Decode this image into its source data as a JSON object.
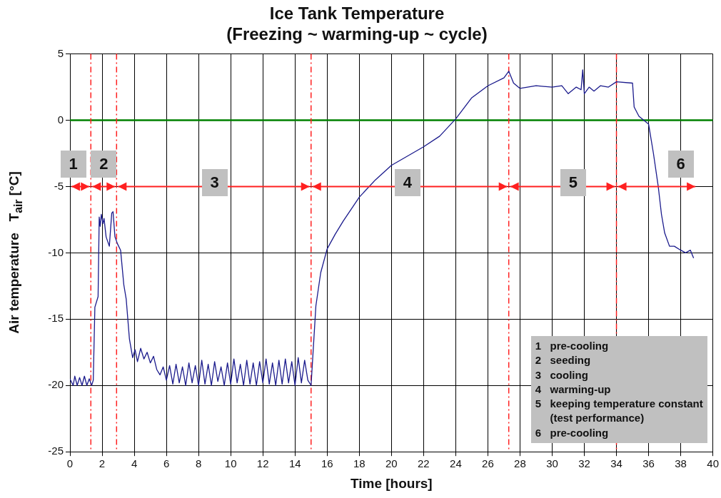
{
  "chart_data": {
    "type": "line",
    "title": [
      "Ice Tank Temperature",
      "(Freezing ~ warming-up ~ cycle)"
    ],
    "xlabel": "Time [hours]",
    "ylabel": "Air temperature   T$_{air}$ [°C]",
    "xlim": [
      0,
      40
    ],
    "xticks": [
      0,
      2,
      4,
      6,
      8,
      10,
      12,
      14,
      16,
      18,
      20,
      22,
      24,
      26,
      28,
      30,
      32,
      34,
      36,
      38,
      40
    ],
    "ylim": [
      -25,
      5
    ],
    "yticks": [
      -25,
      -20,
      -15,
      -10,
      -5,
      0,
      5
    ],
    "grid": true,
    "legend": false,
    "marker": "none",
    "line_style": "solid",
    "series": [
      {
        "color": "#1a1a8c",
        "x": [
          0,
          0.2,
          0.3,
          0.45,
          0.6,
          0.75,
          0.9,
          1.05,
          1.2,
          1.35,
          1.45,
          1.55,
          1.75,
          1.82,
          1.88,
          1.95,
          2.05,
          2.12,
          2.25,
          2.45,
          2.6,
          2.68,
          2.8,
          2.95,
          3.15,
          3.35,
          3.5,
          3.7,
          3.9,
          4.05,
          4.2,
          4.4,
          4.6,
          4.8,
          5.0,
          5.2,
          5.4,
          5.6,
          5.8,
          6.0,
          6.2,
          6.4,
          6.6,
          6.8,
          7.0,
          7.2,
          7.4,
          7.6,
          7.8,
          8.0,
          8.2,
          8.4,
          8.6,
          8.8,
          9.0,
          9.2,
          9.4,
          9.6,
          9.8,
          10.0,
          10.2,
          10.4,
          10.6,
          10.8,
          11.0,
          11.2,
          11.4,
          11.6,
          11.8,
          12.0,
          12.2,
          12.4,
          12.6,
          12.8,
          13.0,
          13.2,
          13.4,
          13.6,
          13.8,
          14.0,
          14.2,
          14.4,
          14.6,
          14.8,
          15.0,
          15.1,
          15.3,
          15.6,
          16,
          16.5,
          17,
          18,
          19,
          20,
          21,
          22,
          23,
          24,
          25,
          26,
          27,
          27.3,
          27.6,
          28,
          29,
          30,
          30.6,
          31,
          31.5,
          31.8,
          31.9,
          32,
          32.3,
          32.6,
          33,
          33.5,
          34,
          35,
          35.1,
          35.4,
          36,
          36.3,
          36.6,
          36.8,
          37,
          37.3,
          37.6,
          38,
          38.3,
          38.6,
          38.8
        ],
        "values": [
          -19.5,
          -20,
          -19.3,
          -20,
          -19.4,
          -20,
          -19.3,
          -20,
          -19.5,
          -20,
          -19.6,
          -14.1,
          -13.3,
          -7.3,
          -8.0,
          -7.1,
          -7.8,
          -7.4,
          -8.8,
          -9.5,
          -7.0,
          -6.9,
          -8.8,
          -9.3,
          -9.8,
          -12.4,
          -13.5,
          -16.5,
          -17.9,
          -17.3,
          -18.2,
          -17.2,
          -18.0,
          -17.5,
          -18.3,
          -17.8,
          -18.8,
          -19.2,
          -18.6,
          -19.6,
          -18.5,
          -19.9,
          -18.4,
          -19.8,
          -18.6,
          -20,
          -18.3,
          -19.8,
          -18.5,
          -20,
          -18.1,
          -19.9,
          -18.4,
          -20,
          -18.2,
          -19.7,
          -18.6,
          -20,
          -18.3,
          -19.9,
          -18.0,
          -19.8,
          -18.4,
          -20,
          -18.1,
          -19.9,
          -18.3,
          -20,
          -18.2,
          -19.8,
          -18.0,
          -19.9,
          -18.3,
          -20,
          -18.1,
          -19.9,
          -18.0,
          -19.8,
          -18.2,
          -20,
          -17.9,
          -19.8,
          -18.1,
          -19.6,
          -20,
          -18,
          -14,
          -11.5,
          -9.7,
          -8.6,
          -7.6,
          -5.8,
          -4.5,
          -3.4,
          -2.7,
          -2,
          -1.2,
          0.1,
          1.7,
          2.6,
          3.2,
          3.7,
          2.8,
          2.4,
          2.6,
          2.5,
          2.6,
          2.0,
          2.5,
          2.3,
          3.8,
          2.0,
          2.5,
          2.2,
          2.6,
          2.5,
          2.9,
          2.8,
          1.0,
          0.3,
          -0.3,
          -2.5,
          -5,
          -7.1,
          -8.5,
          -9.5,
          -9.5,
          -9.8,
          -10,
          -9.8,
          -10.4
        ]
      }
    ],
    "ref_lines": [
      {
        "axis": "y",
        "value": 0,
        "color": "#008000",
        "line_style": "solid"
      },
      {
        "axis": "x",
        "value": 1.3,
        "color": "#ff2020",
        "line_style": "dashed"
      },
      {
        "axis": "x",
        "value": 2.9,
        "color": "#ff2020",
        "line_style": "dashed"
      },
      {
        "axis": "x",
        "value": 15,
        "color": "#ff2020",
        "line_style": "dashed"
      },
      {
        "axis": "x",
        "value": 27.3,
        "color": "#ff2020",
        "line_style": "dashed"
      },
      {
        "axis": "x",
        "value": 34,
        "color": "#ff2020",
        "line_style": "dashed"
      }
    ],
    "annotations": [
      {
        "text": "1",
        "x": 0.2,
        "y": -3.3
      },
      {
        "text": "2",
        "x": 2.1,
        "y": -3.3
      },
      {
        "text": "3",
        "x": 9,
        "y": -4.7
      },
      {
        "text": "4",
        "x": 21,
        "y": -4.7
      },
      {
        "text": "5",
        "x": 31.3,
        "y": -4.7
      },
      {
        "text": "6",
        "x": 38,
        "y": -3.3
      },
      "1   pre-cooling",
      "2   seeding",
      "3   cooling",
      "4   warming-up",
      "5   keeping temperature constant",
      "     (test performance)",
      "6   pre-cooling"
    ]
  }
}
